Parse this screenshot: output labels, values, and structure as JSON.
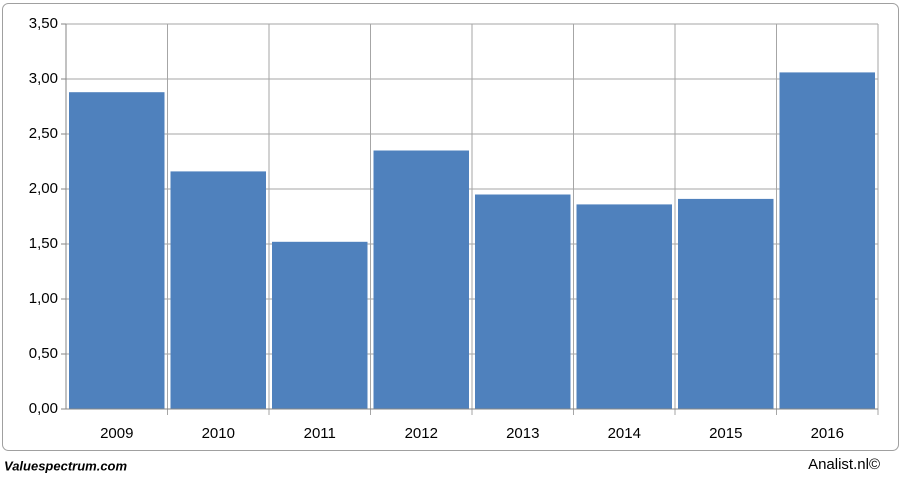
{
  "chart_data": {
    "type": "bar",
    "categories": [
      "2009",
      "2010",
      "2011",
      "2012",
      "2013",
      "2014",
      "2015",
      "2016"
    ],
    "values": [
      2.88,
      2.16,
      1.52,
      2.35,
      1.95,
      1.86,
      1.91,
      3.06
    ],
    "color": "#4f81bd",
    "ylim": [
      0,
      3.5
    ],
    "yticks": [
      {
        "value": 0,
        "label": "0,00"
      },
      {
        "value": 0.5,
        "label": "0,50"
      },
      {
        "value": 1,
        "label": "1,00"
      },
      {
        "value": 1.5,
        "label": "1,50"
      },
      {
        "value": 2,
        "label": "2,00"
      },
      {
        "value": 2.5,
        "label": "2,50"
      },
      {
        "value": 3,
        "label": "3,00"
      },
      {
        "value": 3.5,
        "label": "3,50"
      }
    ],
    "grid": true
  },
  "footer": {
    "left": "Valuespectrum.com",
    "right": "Analist.nl©"
  }
}
